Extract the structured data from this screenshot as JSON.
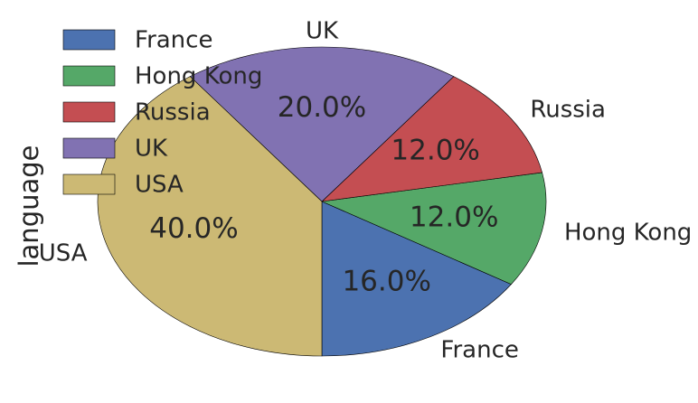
{
  "chart_data": {
    "type": "pie",
    "ylabel": "language",
    "categories": [
      "France",
      "Hong Kong",
      "Russia",
      "UK",
      "USA"
    ],
    "values": [
      16.0,
      12.0,
      12.0,
      20.0,
      40.0
    ],
    "percent_labels": [
      "16.0%",
      "12.0%",
      "12.0%",
      "20.0%",
      "40.0%"
    ],
    "colors": [
      "#4c72b0",
      "#55a868",
      "#c44e52",
      "#8172b2",
      "#ccb974"
    ],
    "start_angle_deg": -90,
    "direction": "counterclockwise",
    "legend": {
      "placement": "upper-left",
      "entries": [
        "France",
        "Hong Kong",
        "Russia",
        "UK",
        "USA"
      ]
    }
  }
}
